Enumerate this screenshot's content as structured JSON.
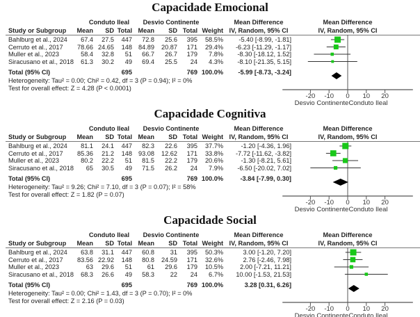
{
  "headers": {
    "study": "Study or Subgroup",
    "group1": "Conduto Ileal",
    "group2": "Desvio Continente",
    "mean": "Mean",
    "sd": "SD",
    "total": "Total",
    "weight": "Weight",
    "md_title": "Mean Difference",
    "md_method": "IV, Random, 95% CI",
    "plot_title": "Mean Difference",
    "plot_method": "IV, Random, 95% CI"
  },
  "sections": [
    {
      "title": "Capacidade Emocional",
      "rows": [
        {
          "study": "Bahlburg et al., 2024",
          "m1": "67.4",
          "sd1": "27.5",
          "n1": "447",
          "m2": "72.8",
          "sd2": "25.6",
          "n2": "395",
          "weight": "58.5%",
          "ci": "-5.40 [-8.99, -1.81]"
        },
        {
          "study": "Cerruto et al., 2017",
          "m1": "78.66",
          "sd1": "24.65",
          "n1": "148",
          "m2": "84.89",
          "sd2": "20.87",
          "n2": "171",
          "weight": "29.4%",
          "ci": "-6.23 [-11.29, -1.17]"
        },
        {
          "study": "Muller et al., 2023",
          "m1": "58.4",
          "sd1": "32.8",
          "n1": "51",
          "m2": "66.7",
          "sd2": "26.7",
          "n2": "179",
          "weight": "7.8%",
          "ci": "-8.30 [-18.12, 1.52]"
        },
        {
          "study": "Siracusano et al., 2018",
          "m1": "61.3",
          "sd1": "30.2",
          "n1": "49",
          "m2": "69.4",
          "sd2": "25.5",
          "n2": "24",
          "weight": "4.3%",
          "ci": "-8.10 [-21.35, 5.15]"
        }
      ],
      "total": {
        "label": "Total (95% CI)",
        "n1": "695",
        "n2": "769",
        "weight": "100.0%",
        "ci": "-5.99 [-8.73, -3.24]"
      },
      "heterogeneity": "Heterogeneity: Tau² = 0.00; Chi² = 0.42, df = 3 (P = 0.94); I² = 0%",
      "overall": "Test for overall effect: Z = 4.28 (P < 0.0001)",
      "axis_ticks": [
        "-20",
        "-10",
        "0",
        "10",
        "20"
      ],
      "favours_left": "Desvio Continente",
      "favours_right": "Conduto Ileal"
    },
    {
      "title": "Capacidade Cognitiva",
      "rows": [
        {
          "study": "Bahlburg et al., 2024",
          "m1": "81.1",
          "sd1": "24.1",
          "n1": "447",
          "m2": "82.3",
          "sd2": "22.6",
          "n2": "395",
          "weight": "37.7%",
          "ci": "-1.20 [-4.36, 1.96]"
        },
        {
          "study": "Cerruto et al., 2017",
          "m1": "85.36",
          "sd1": "21.2",
          "n1": "148",
          "m2": "93.08",
          "sd2": "12.62",
          "n2": "171",
          "weight": "33.8%",
          "ci": "-7.72 [-11.62, -3.82]"
        },
        {
          "study": "Muller et al., 2023",
          "m1": "80.2",
          "sd1": "22.2",
          "n1": "51",
          "m2": "81.5",
          "sd2": "22.2",
          "n2": "179",
          "weight": "20.6%",
          "ci": "-1.30 [-8.21, 5.61]"
        },
        {
          "study": "Siracusano et al., 2018",
          "m1": "65",
          "sd1": "30.5",
          "n1": "49",
          "m2": "71.5",
          "sd2": "26.2",
          "n2": "24",
          "weight": "7.9%",
          "ci": "-6.50 [-20.02, 7.02]"
        }
      ],
      "total": {
        "label": "Total (95% CI)",
        "n1": "695",
        "n2": "769",
        "weight": "100.0%",
        "ci": "-3.84 [-7.99, 0.30]"
      },
      "heterogeneity": "Heterogeneity: Tau² = 9.26; Chi² = 7.10, df = 3 (P = 0.07); I² = 58%",
      "overall": "Test for overall effect: Z = 1.82 (P = 0.07)",
      "axis_ticks": [
        "-20",
        "-10",
        "0",
        "10",
        "20"
      ],
      "favours_left": "Desvio Continente",
      "favours_right": "Conduto Ileal"
    },
    {
      "title": "Capacidade Social",
      "rows": [
        {
          "study": "Bahlburg et al., 2024",
          "m1": "63.8",
          "sd1": "31.1",
          "n1": "447",
          "m2": "60.8",
          "sd2": "31",
          "n2": "395",
          "weight": "50.3%",
          "ci": "3.00 [-1.20, 7.20]"
        },
        {
          "study": "Cerruto et al., 2017",
          "m1": "83.56",
          "sd1": "22.92",
          "n1": "148",
          "m2": "80.8",
          "sd2": "24.59",
          "n2": "171",
          "weight": "32.6%",
          "ci": "2.76 [-2.46, 7.98]"
        },
        {
          "study": "Muller et al., 2023",
          "m1": "63",
          "sd1": "29.6",
          "n1": "51",
          "m2": "61",
          "sd2": "29.6",
          "n2": "179",
          "weight": "10.5%",
          "ci": "2.00 [-7.21, 11.21]"
        },
        {
          "study": "Siracusano et al., 2018",
          "m1": "68.3",
          "sd1": "26.6",
          "n1": "49",
          "m2": "58.3",
          "sd2": "22",
          "n2": "24",
          "weight": "6.7%",
          "ci": "10.00 [-1.53, 21.53]"
        }
      ],
      "total": {
        "label": "Total (95% CI)",
        "n1": "695",
        "n2": "769",
        "weight": "100.0%",
        "ci": "3.28 [0.31, 6.26]"
      },
      "heterogeneity": "Heterogeneity: Tau² = 0.00; Chi² = 1.43, df = 3 (P = 0.70); I² = 0%",
      "overall": "Test for overall effect: Z = 2.16 (P = 0.03)",
      "axis_ticks": [
        "-20",
        "-10",
        "0",
        "10",
        "20"
      ],
      "favours_left": "Desvio Continente",
      "favours_right": "Conduto Ileal"
    }
  ],
  "colors": {
    "study_marker": "#19c819",
    "total_diamond": "#000000",
    "axis": "#555555"
  },
  "chart_data": [
    {
      "type": "forest",
      "title": "Capacidade Emocional",
      "xlabel_left": "Desvio Continente",
      "xlabel_right": "Conduto Ileal",
      "xlim": [
        -35,
        35
      ],
      "xticks": [
        -20,
        -10,
        0,
        10,
        20
      ],
      "studies": [
        {
          "name": "Bahlburg et al., 2024",
          "md": -5.4,
          "lo": -8.99,
          "hi": -1.81,
          "weight": 58.5
        },
        {
          "name": "Cerruto et al., 2017",
          "md": -6.23,
          "lo": -11.29,
          "hi": -1.17,
          "weight": 29.4
        },
        {
          "name": "Muller et al., 2023",
          "md": -8.3,
          "lo": -18.12,
          "hi": 1.52,
          "weight": 7.8
        },
        {
          "name": "Siracusano et al., 2018",
          "md": -8.1,
          "lo": -21.35,
          "hi": 5.15,
          "weight": 4.3
        }
      ],
      "pooled": {
        "md": -5.99,
        "lo": -8.73,
        "hi": -3.24
      }
    },
    {
      "type": "forest",
      "title": "Capacidade Cognitiva",
      "xlabel_left": "Desvio Continente",
      "xlabel_right": "Conduto Ileal",
      "xlim": [
        -35,
        35
      ],
      "xticks": [
        -20,
        -10,
        0,
        10,
        20
      ],
      "studies": [
        {
          "name": "Bahlburg et al., 2024",
          "md": -1.2,
          "lo": -4.36,
          "hi": 1.96,
          "weight": 37.7
        },
        {
          "name": "Cerruto et al., 2017",
          "md": -7.72,
          "lo": -11.62,
          "hi": -3.82,
          "weight": 33.8
        },
        {
          "name": "Muller et al., 2023",
          "md": -1.3,
          "lo": -8.21,
          "hi": 5.61,
          "weight": 20.6
        },
        {
          "name": "Siracusano et al., 2018",
          "md": -6.5,
          "lo": -20.02,
          "hi": 7.02,
          "weight": 7.9
        }
      ],
      "pooled": {
        "md": -3.84,
        "lo": -7.99,
        "hi": 0.3
      }
    },
    {
      "type": "forest",
      "title": "Capacidade Social",
      "xlabel_left": "Desvio Continente",
      "xlabel_right": "Conduto Ileal",
      "xlim": [
        -35,
        35
      ],
      "xticks": [
        -20,
        -10,
        0,
        10,
        20
      ],
      "studies": [
        {
          "name": "Bahlburg et al., 2024",
          "md": 3.0,
          "lo": -1.2,
          "hi": 7.2,
          "weight": 50.3
        },
        {
          "name": "Cerruto et al., 2017",
          "md": 2.76,
          "lo": -2.46,
          "hi": 7.98,
          "weight": 32.6
        },
        {
          "name": "Muller et al., 2023",
          "md": 2.0,
          "lo": -7.21,
          "hi": 11.21,
          "weight": 10.5
        },
        {
          "name": "Siracusano et al., 2018",
          "md": 10.0,
          "lo": -1.53,
          "hi": 21.53,
          "weight": 6.7
        }
      ],
      "pooled": {
        "md": 3.28,
        "lo": 0.31,
        "hi": 6.26
      }
    }
  ]
}
